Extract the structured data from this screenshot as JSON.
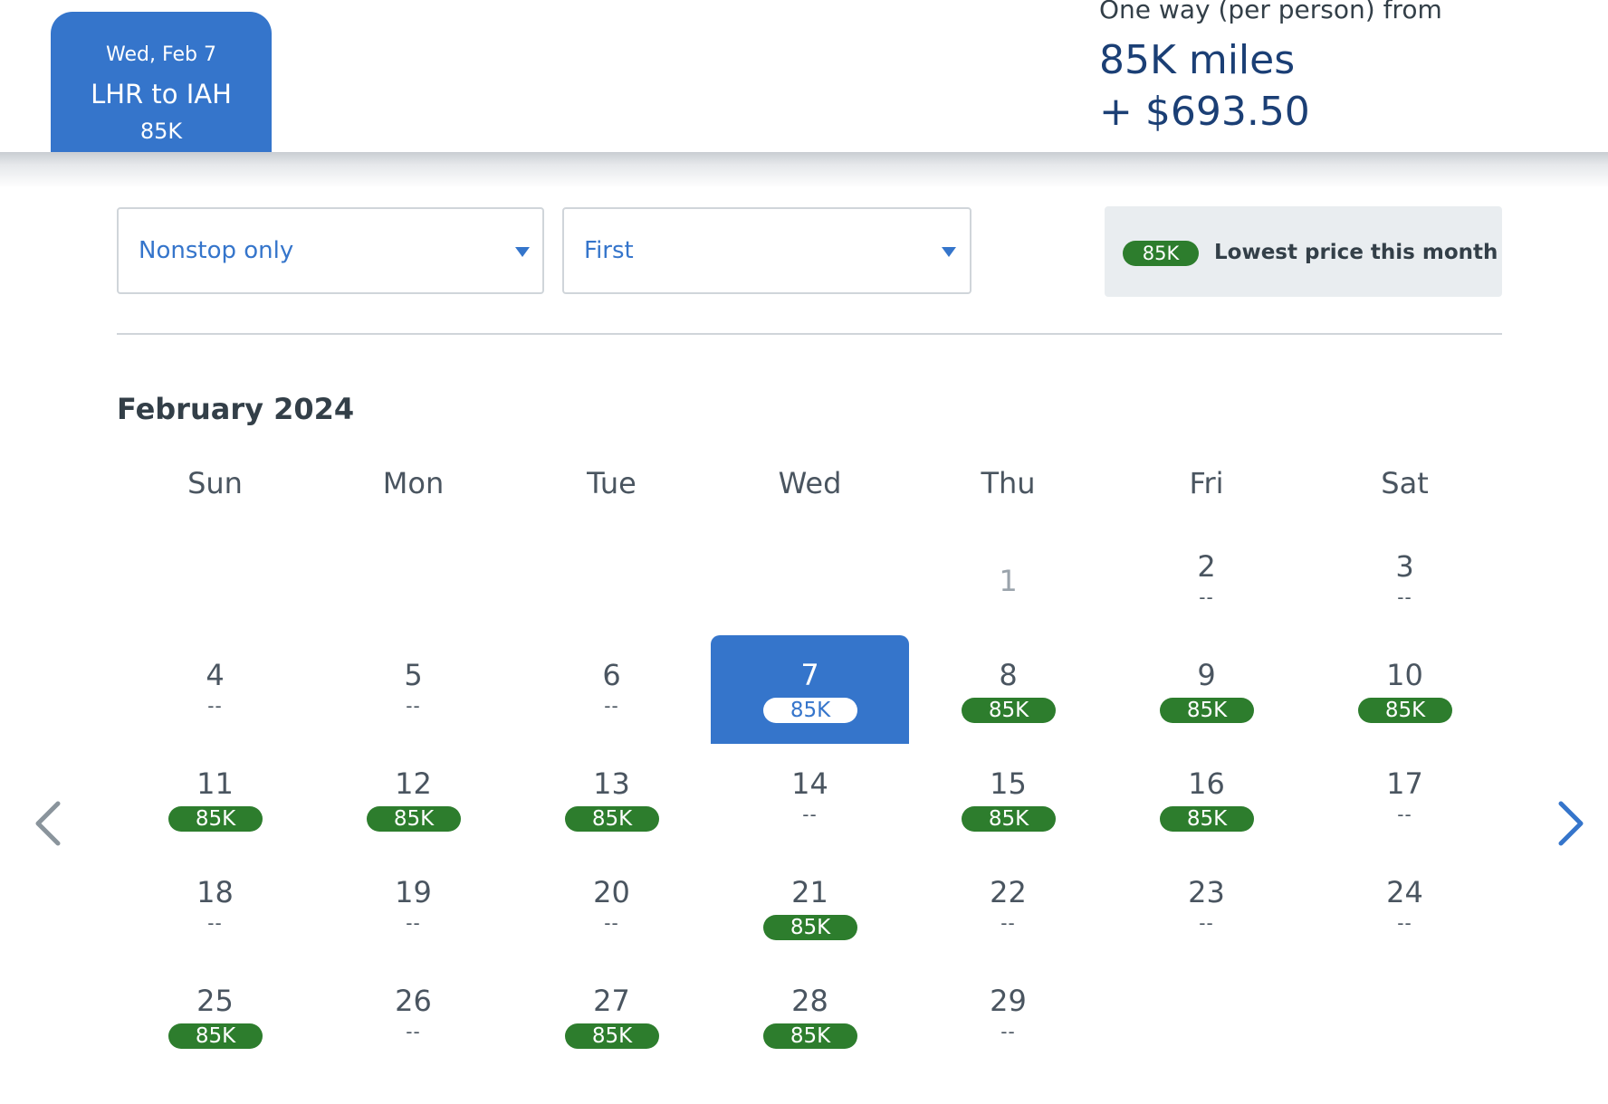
{
  "header": {
    "tab": {
      "date": "Wed, Feb 7",
      "route": "LHR to IAH",
      "price": "85K"
    },
    "summary": {
      "label": "One way (per person) from",
      "miles": "85K miles",
      "cash": "+ $693.50"
    }
  },
  "filters": {
    "stops": {
      "value": "Nonstop only"
    },
    "cabin": {
      "value": "First"
    }
  },
  "legend": {
    "badge": "85K",
    "text": "Lowest price this month"
  },
  "calendar": {
    "month": "February 2024",
    "weekdays": [
      "Sun",
      "Mon",
      "Tue",
      "Wed",
      "Thu",
      "Fri",
      "Sat"
    ],
    "no_price": "--",
    "days": [
      {
        "num": "1",
        "price": "",
        "disabled": true
      },
      {
        "num": "2",
        "price": "--"
      },
      {
        "num": "3",
        "price": "--"
      },
      {
        "num": "4",
        "price": "--"
      },
      {
        "num": "5",
        "price": "--"
      },
      {
        "num": "6",
        "price": "--"
      },
      {
        "num": "7",
        "price": "85K",
        "selected": true
      },
      {
        "num": "8",
        "price": "85K"
      },
      {
        "num": "9",
        "price": "85K"
      },
      {
        "num": "10",
        "price": "85K"
      },
      {
        "num": "11",
        "price": "85K"
      },
      {
        "num": "12",
        "price": "85K"
      },
      {
        "num": "13",
        "price": "85K"
      },
      {
        "num": "14",
        "price": "--"
      },
      {
        "num": "15",
        "price": "85K"
      },
      {
        "num": "16",
        "price": "85K"
      },
      {
        "num": "17",
        "price": "--"
      },
      {
        "num": "18",
        "price": "--"
      },
      {
        "num": "19",
        "price": "--"
      },
      {
        "num": "20",
        "price": "--"
      },
      {
        "num": "21",
        "price": "85K"
      },
      {
        "num": "22",
        "price": "--"
      },
      {
        "num": "23",
        "price": "--"
      },
      {
        "num": "24",
        "price": "--"
      },
      {
        "num": "25",
        "price": "85K"
      },
      {
        "num": "26",
        "price": "--"
      },
      {
        "num": "27",
        "price": "85K"
      },
      {
        "num": "28",
        "price": "85K"
      },
      {
        "num": "29",
        "price": "--"
      }
    ]
  },
  "nav": {
    "prev_icon": "chevron-left-icon",
    "next_icon": "chevron-right-icon"
  },
  "colors": {
    "brand_blue": "#3575cb",
    "price_green": "#2d7d2d",
    "text_navy": "#1b3f75"
  }
}
